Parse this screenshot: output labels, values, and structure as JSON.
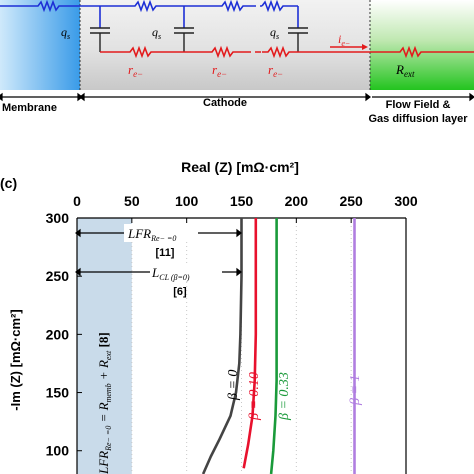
{
  "circuit": {
    "q_labels": [
      "q",
      "q",
      "q"
    ],
    "q_sub": "s",
    "r_labels": [
      "r",
      "r",
      "r"
    ],
    "r_sub": "e−",
    "i_label": "i",
    "i_sub": "e−",
    "r_ext": "R",
    "r_ext_sub": "ext",
    "membrane": "Membrane",
    "cathode": "Cathode",
    "flowfield_line1": "Flow Field &",
    "flowfield_line2": "Gas diffusion layer"
  },
  "panel_c": {
    "panel_label": "(c)",
    "x_title": "Real (Z)  [mΩ·cm²]",
    "y_title": "-Im (Z)  [mΩ·cm²]",
    "x_ticks": [
      "0",
      "50",
      "100",
      "150",
      "200",
      "250",
      "300"
    ],
    "y_ticks": [
      "300",
      "250",
      "200",
      "150",
      "100"
    ],
    "lfr_label_main": "LFR",
    "lfr_label_sub": "Re− =0",
    "lfr_ref": "[11]",
    "lcl_label_main": "L",
    "lcl_label_sub": "CL (β=0)",
    "lcl_ref": "[6]",
    "rotated_main": "LFR",
    "rotated_sub": "Re− =0",
    "rotated_rest": " = R",
    "rotated_memb": "memb",
    "rotated_plus": " + R",
    "rotated_ext": "ext",
    "rotated_ref": " [8]",
    "beta_labels": [
      "β = 0",
      "β = 0.10",
      "β = 0.33",
      "β = 1"
    ]
  },
  "colors": {
    "beta_0": "#444444",
    "beta_010": "#e8112d",
    "beta_033": "#1a9a3a",
    "beta_1": "#b07ee0",
    "shaded_band": "#c9dbea",
    "circuit_wire_top": "#1d2fd6",
    "circuit_wire_bottom": "#e31a1c",
    "flowfield": "#23c41f"
  },
  "chart_data": {
    "type": "line",
    "title": "",
    "xlabel": "Real (Z)  [mΩ·cm²]",
    "ylabel": "-Im (Z)  [mΩ·cm²]",
    "xlim": [
      0,
      300
    ],
    "ylim": [
      80,
      300
    ],
    "x_ticks": [
      0,
      50,
      100,
      150,
      200,
      250,
      300
    ],
    "y_ticks": [
      100,
      150,
      200,
      250,
      300
    ],
    "shaded_region_x": [
      0,
      50
    ],
    "series": [
      {
        "name": "β = 0",
        "points": [
          [
            150,
            300
          ],
          [
            150,
            250
          ],
          [
            149,
            200
          ],
          [
            148,
            175
          ],
          [
            145,
            150
          ],
          [
            140,
            130
          ],
          [
            130,
            110
          ],
          [
            122,
            95
          ],
          [
            115,
            80
          ]
        ]
      },
      {
        "name": "β = 0.10",
        "points": [
          [
            163,
            300
          ],
          [
            163,
            250
          ],
          [
            163,
            200
          ],
          [
            162,
            160
          ],
          [
            160,
            130
          ],
          [
            156,
            105
          ],
          [
            152,
            85
          ]
        ]
      },
      {
        "name": "β = 0.33",
        "points": [
          [
            182,
            300
          ],
          [
            182,
            250
          ],
          [
            182,
            200
          ],
          [
            182,
            160
          ],
          [
            181,
            130
          ],
          [
            179,
            100
          ],
          [
            177,
            80
          ]
        ]
      },
      {
        "name": "β = 1",
        "points": [
          [
            253,
            300
          ],
          [
            253,
            250
          ],
          [
            253,
            200
          ],
          [
            253,
            150
          ],
          [
            253,
            100
          ],
          [
            253,
            80
          ]
        ]
      }
    ]
  }
}
